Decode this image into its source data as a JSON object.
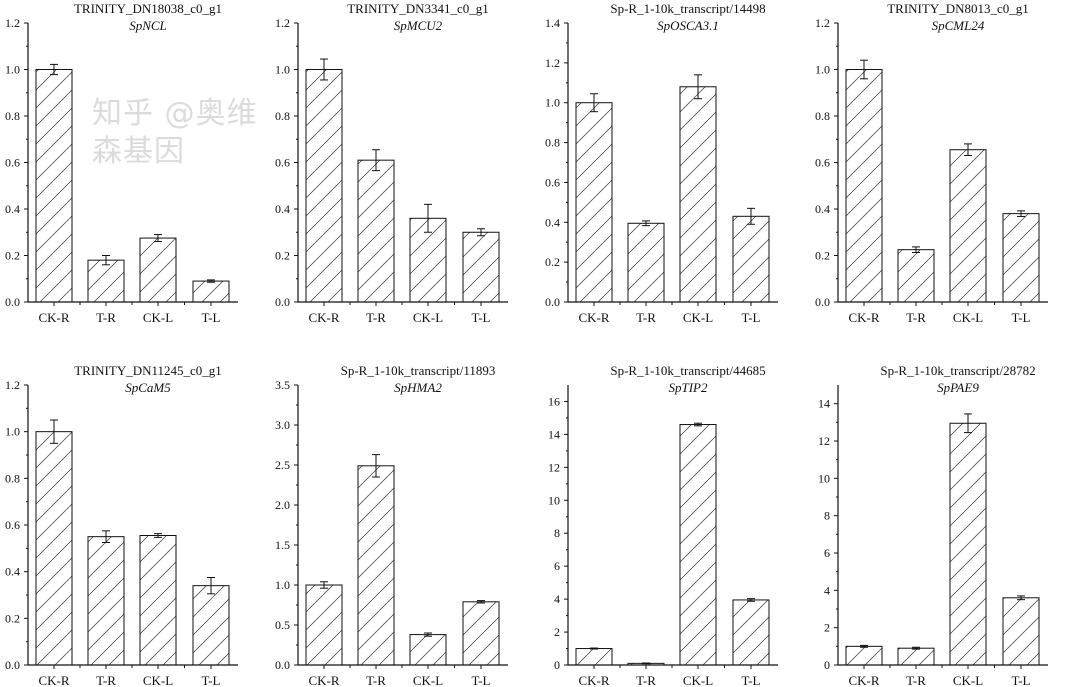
{
  "watermark": "知乎 @奥维森基因",
  "chart_data": [
    {
      "type": "bar",
      "title": "TRINITY_DN18038_c0_g1",
      "subtitle": "SpNCL",
      "categories": [
        "CK-R",
        "T-R",
        "CK-L",
        "T-L"
      ],
      "values": [
        1.0,
        0.18,
        0.275,
        0.09
      ],
      "errors": [
        0.022,
        0.02,
        0.015,
        0.005
      ],
      "ylim": [
        0,
        1.2
      ],
      "yticks": [
        0,
        0.2,
        0.4,
        0.6,
        0.8,
        1.0,
        1.2
      ],
      "tick_decimals": 1,
      "xlabel": "",
      "ylabel": ""
    },
    {
      "type": "bar",
      "title": "TRINITY_DN3341_c0_g1",
      "subtitle": "SpMCU2",
      "categories": [
        "CK-R",
        "T-R",
        "CK-L",
        "T-L"
      ],
      "values": [
        1.0,
        0.61,
        0.36,
        0.3
      ],
      "errors": [
        0.045,
        0.045,
        0.06,
        0.015
      ],
      "ylim": [
        0,
        1.2
      ],
      "yticks": [
        0,
        0.2,
        0.4,
        0.6,
        0.8,
        1.0,
        1.2
      ],
      "tick_decimals": 1,
      "xlabel": "",
      "ylabel": ""
    },
    {
      "type": "bar",
      "title": "Sp-R_1-10k_transcript/14498",
      "subtitle": "SpOSCA3.1",
      "categories": [
        "CK-R",
        "T-R",
        "CK-L",
        "T-L"
      ],
      "values": [
        1.0,
        0.395,
        1.08,
        0.43
      ],
      "errors": [
        0.045,
        0.012,
        0.06,
        0.04
      ],
      "ylim": [
        0,
        1.4
      ],
      "yticks": [
        0,
        0.2,
        0.4,
        0.6,
        0.8,
        1.0,
        1.2,
        1.4
      ],
      "tick_decimals": 1,
      "xlabel": "",
      "ylabel": ""
    },
    {
      "type": "bar",
      "title": "TRINITY_DN8013_c0_g1",
      "subtitle": "SpCML24",
      "categories": [
        "CK-R",
        "T-R",
        "CK-L",
        "T-L"
      ],
      "values": [
        1.0,
        0.225,
        0.655,
        0.38
      ],
      "errors": [
        0.04,
        0.012,
        0.025,
        0.012
      ],
      "ylim": [
        0,
        1.2
      ],
      "yticks": [
        0,
        0.2,
        0.4,
        0.6,
        0.8,
        1.0,
        1.2
      ],
      "tick_decimals": 1,
      "xlabel": "",
      "ylabel": ""
    },
    {
      "type": "bar",
      "title": "TRINITY_DN11245_c0_g1",
      "subtitle": "SpCaM5",
      "categories": [
        "CK-R",
        "T-R",
        "CK-L",
        "T-L"
      ],
      "values": [
        1.0,
        0.55,
        0.555,
        0.34
      ],
      "errors": [
        0.05,
        0.025,
        0.008,
        0.035
      ],
      "ylim": [
        0,
        1.2
      ],
      "yticks": [
        0,
        0.2,
        0.4,
        0.6,
        0.8,
        1.0,
        1.2
      ],
      "tick_decimals": 1,
      "xlabel": "",
      "ylabel": ""
    },
    {
      "type": "bar",
      "title": "Sp-R_1-10k_transcript/11893",
      "subtitle": "SpHMA2",
      "categories": [
        "CK-R",
        "T-R",
        "CK-L",
        "T-L"
      ],
      "values": [
        1.0,
        2.49,
        0.38,
        0.79
      ],
      "errors": [
        0.04,
        0.14,
        0.02,
        0.015
      ],
      "ylim": [
        0,
        3.5
      ],
      "yticks": [
        0,
        0.5,
        1.0,
        1.5,
        2.0,
        2.5,
        3.0,
        3.5
      ],
      "tick_decimals": 1,
      "xlabel": "",
      "ylabel": ""
    },
    {
      "type": "bar",
      "title": "Sp-R_1-10k_transcript/44685",
      "subtitle": "SpTIP2",
      "categories": [
        "CK-R",
        "T-R",
        "CK-L",
        "T-L"
      ],
      "values": [
        1.0,
        0.1,
        14.6,
        3.95
      ],
      "errors": [
        0.03,
        0.02,
        0.08,
        0.08
      ],
      "ylim": [
        0,
        17
      ],
      "yticks": [
        0,
        2,
        4,
        6,
        8,
        10,
        12,
        14,
        16
      ],
      "tick_decimals": 0,
      "xlabel": "",
      "ylabel": ""
    },
    {
      "type": "bar",
      "title": "Sp-R_1-10k_transcript/28782",
      "subtitle": "SpPAE9",
      "categories": [
        "CK-R",
        "T-R",
        "CK-L",
        "T-L"
      ],
      "values": [
        1.0,
        0.9,
        12.95,
        3.6
      ],
      "errors": [
        0.05,
        0.05,
        0.5,
        0.1
      ],
      "ylim": [
        0,
        15
      ],
      "yticks": [
        0,
        2,
        4,
        6,
        8,
        10,
        12,
        14
      ],
      "tick_decimals": 0,
      "xlabel": "",
      "ylabel": ""
    }
  ]
}
